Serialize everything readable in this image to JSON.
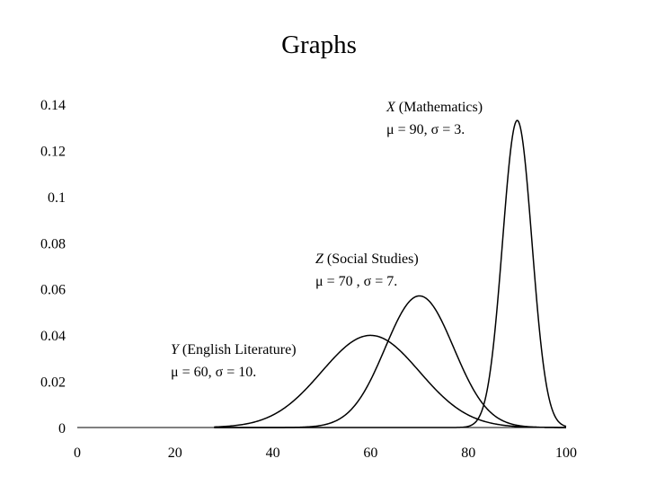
{
  "chart_data": {
    "title": "Graphs",
    "type": "line",
    "xlim": [
      0,
      100
    ],
    "ylim": [
      0,
      0.14
    ],
    "x_ticks": [
      "0",
      "20",
      "40",
      "60",
      "80",
      "100"
    ],
    "y_ticks": [
      "0",
      "0.02",
      "0.04",
      "0.06",
      "0.08",
      "0.1",
      "0.12",
      "0.14"
    ],
    "grid": false,
    "legend": "none",
    "series": [
      {
        "name": "X (Mathematics)",
        "mu": 90,
        "sigma": 3,
        "label_var": "X",
        "label_subject": " (Mathematics)",
        "label_params": "μ = 90,  σ = 3.",
        "curve_x_range": [
          28,
          100
        ]
      },
      {
        "name": "Z (Social Studies)",
        "mu": 70,
        "sigma": 7,
        "label_var": "Z",
        "label_subject": " (Social Studies)",
        "label_params": "μ = 70 ,  σ = 7.",
        "curve_x_range": [
          28,
          100
        ]
      },
      {
        "name": "Y (English Literature)",
        "mu": 60,
        "sigma": 10,
        "label_var": "Y",
        "label_subject": " (English Literature)",
        "label_params": "μ = 60,  σ = 10.",
        "curve_x_range": [
          28,
          100
        ]
      }
    ]
  }
}
